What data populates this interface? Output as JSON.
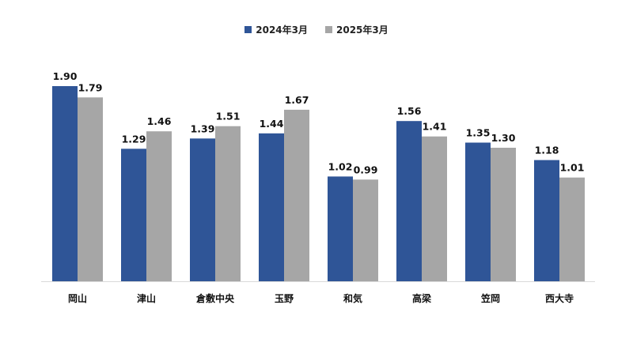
{
  "chart_data": {
    "type": "bar",
    "title": "",
    "xlabel": "",
    "ylabel": "",
    "ylim": [
      0,
      2.0
    ],
    "grid": false,
    "legend_position": "top-center",
    "categories": [
      "岡山",
      "津山",
      "倉敷中央",
      "玉野",
      "和気",
      "高梁",
      "笠岡",
      "西大寺"
    ],
    "series": [
      {
        "name": "2024年3月",
        "color": "#2F5597",
        "values": [
          1.9,
          1.29,
          1.39,
          1.44,
          1.02,
          1.56,
          1.35,
          1.18
        ],
        "labels": [
          "1.90",
          "1.29",
          "1.39",
          "1.44",
          "1.02",
          "1.56",
          "1.35",
          "1.18"
        ]
      },
      {
        "name": "2025年3月",
        "color": "#A6A6A6",
        "values": [
          1.79,
          1.46,
          1.51,
          1.67,
          0.99,
          1.41,
          1.3,
          1.01
        ],
        "labels": [
          "1.79",
          "1.46",
          "1.51",
          "1.67",
          "0.99",
          "1.41",
          "1.30",
          "1.01"
        ]
      }
    ]
  }
}
